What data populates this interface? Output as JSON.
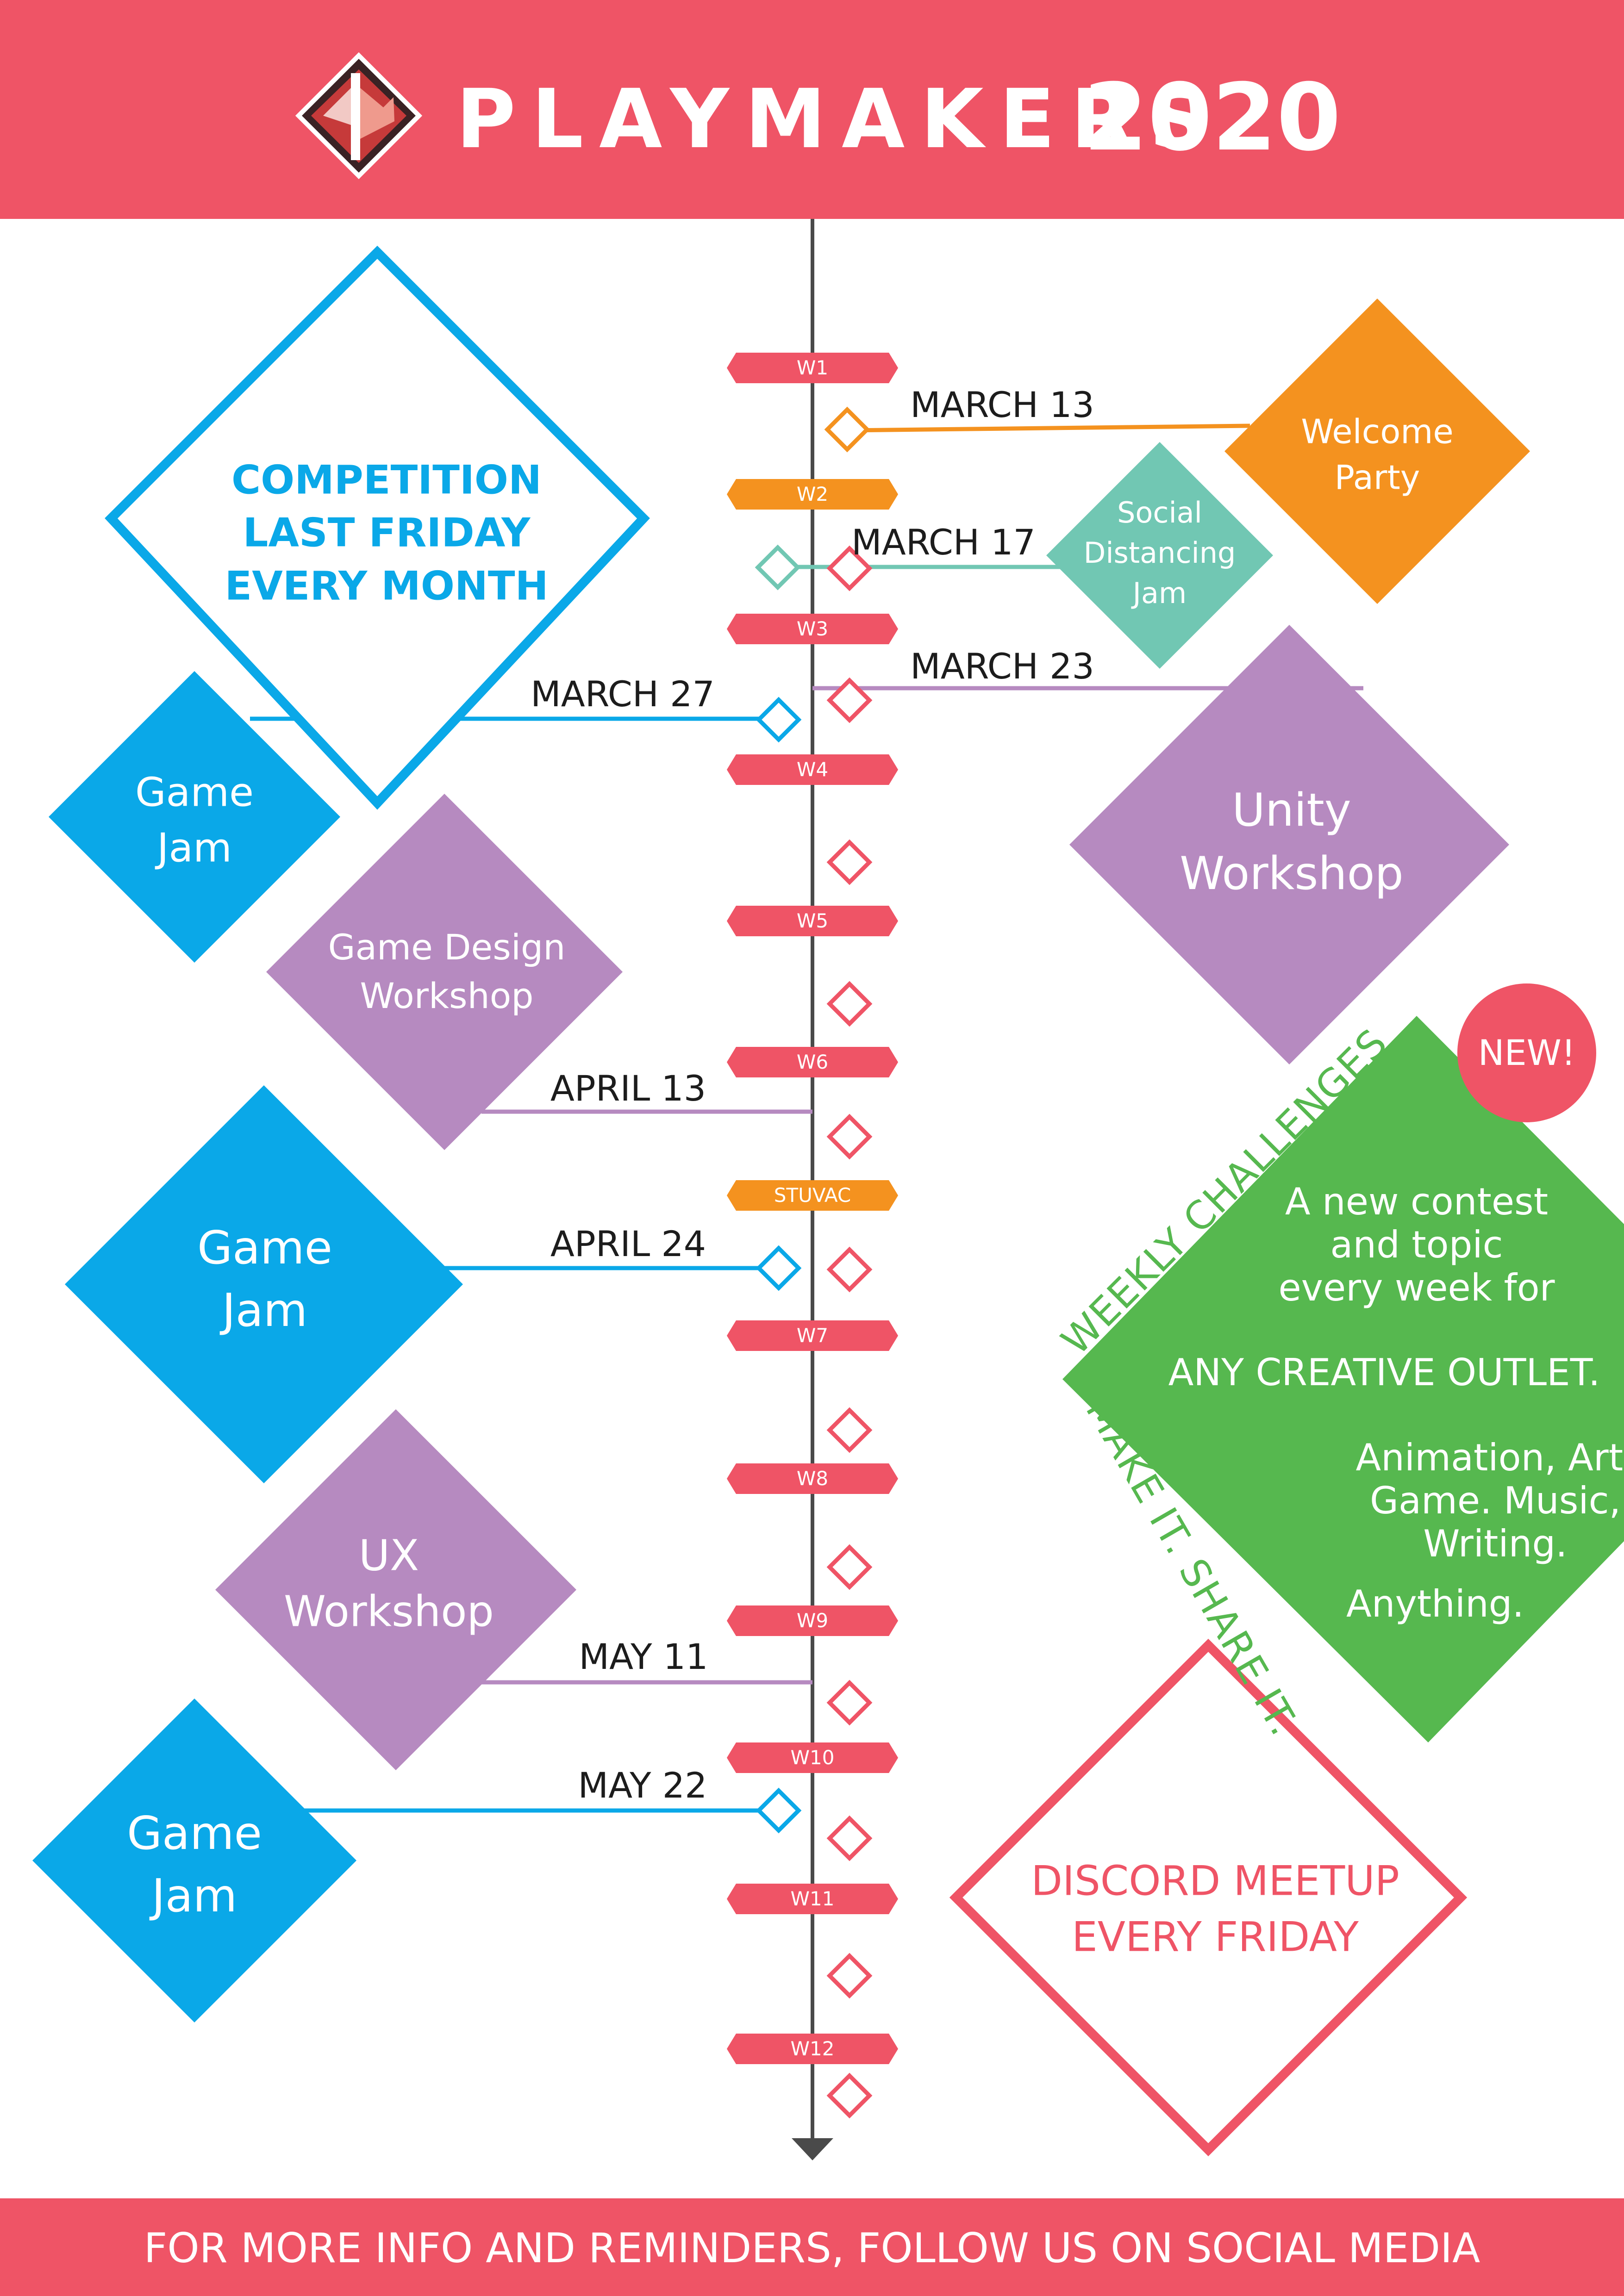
{
  "header": {
    "brand": "PLAYMAKERS",
    "year": "2020"
  },
  "footer": {
    "text": "FOR MORE INFO AND REMINDERS, FOLLOW US ON SOCIAL MEDIA"
  },
  "colors": {
    "brand_red": "#ef5466",
    "blue": "#0aa8e8",
    "purple": "#b68ac0",
    "orange": "#f4921f",
    "teal": "#71c7b3",
    "green": "#56b84f",
    "spine": "#4a4a4a"
  },
  "timeline": {
    "weeks": [
      "W1",
      "W2",
      "W3",
      "W4",
      "W5",
      "W6",
      "STUVAC",
      "W7",
      "W8",
      "W9",
      "W10",
      "W11",
      "W12"
    ]
  },
  "events": {
    "competition": {
      "line1": "COMPETITION",
      "line2": "LAST FRIDAY",
      "line3": "EVERY MONTH"
    },
    "welcome_party": {
      "date": "MARCH 13",
      "line1": "Welcome",
      "line2": "Party"
    },
    "social_distancing_jam": {
      "date": "MARCH 17",
      "line1": "Social",
      "line2": "Distancing",
      "line3": "Jam"
    },
    "unity_workshop": {
      "date": "MARCH 23",
      "line1": "Unity",
      "line2": "Workshop"
    },
    "game_jam_1": {
      "date": "MARCH 27",
      "line1": "Game",
      "line2": "Jam"
    },
    "game_design_workshop": {
      "date": "APRIL 13",
      "line1": "Game Design",
      "line2": "Workshop"
    },
    "game_jam_2": {
      "date": "APRIL 24",
      "line1": "Game",
      "line2": "Jam"
    },
    "ux_workshop": {
      "date": "MAY 11",
      "line1": "UX",
      "line2": "Workshop"
    },
    "game_jam_3": {
      "date": "MAY 22",
      "line1": "Game",
      "line2": "Jam"
    },
    "discord": {
      "line1": "DISCORD MEETUP",
      "line2": "EVERY FRIDAY"
    }
  },
  "weekly_challenges": {
    "badge": "NEW!",
    "title": "WEEKLY CHALLENGES",
    "tagline": "MAKE IT. SHARE IT.",
    "intro": "A new contest and topic every week for",
    "highlight": "ANY CREATIVE OUTLET.",
    "list": "Animation, Art, Game. Music, Writing.",
    "closing": "Anything."
  }
}
